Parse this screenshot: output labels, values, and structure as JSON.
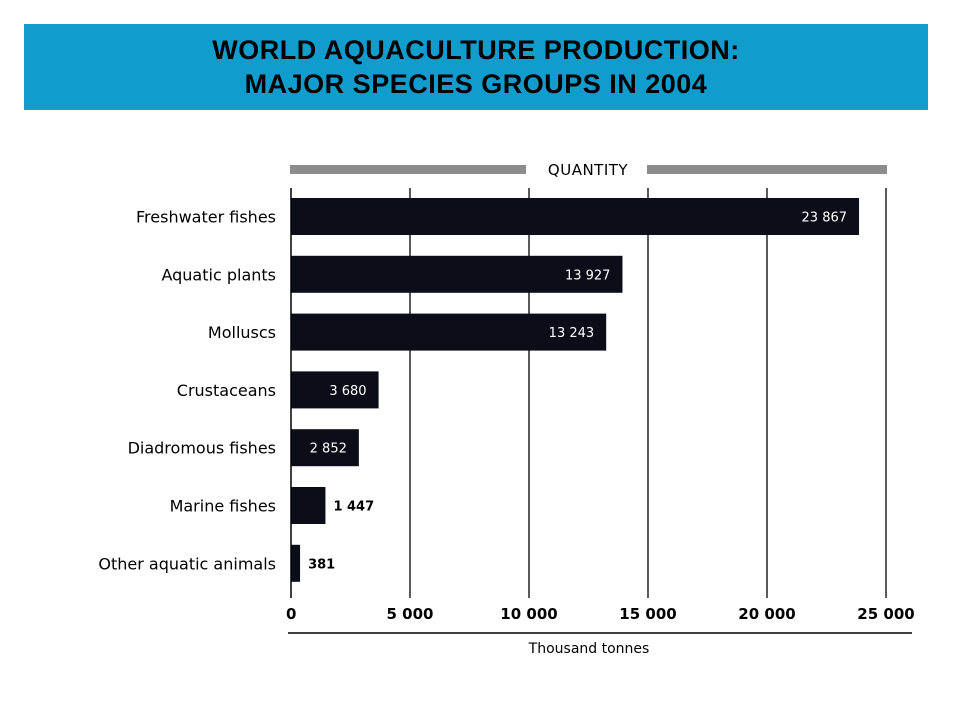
{
  "title": {
    "line1": "WORLD AQUACULTURE PRODUCTION:",
    "line2": "MAJOR SPECIES GROUPS IN 2004"
  },
  "colors": {
    "banner": "#109ccc",
    "bar": "#0d0d1a",
    "header_bar": "#8c8c8c"
  },
  "chart_data": {
    "type": "bar",
    "orientation": "horizontal",
    "header": "QUANTITY",
    "categories": [
      "Freshwater fishes",
      "Aquatic plants",
      "Molluscs",
      "Crustaceans",
      "Diadromous fishes",
      "Marine fishes",
      "Other aquatic animals"
    ],
    "values": [
      23867,
      13927,
      13243,
      3680,
      2852,
      1447,
      381
    ],
    "value_labels": [
      "23 867",
      "13 927",
      "13 243",
      "3 680",
      "2 852",
      "1 447",
      "381"
    ],
    "xlabel": "Thousand tonnes",
    "xlim": [
      0,
      25000
    ],
    "ticks": [
      0,
      5000,
      10000,
      15000,
      20000,
      25000
    ],
    "tick_labels": [
      "0",
      "5 000",
      "10 000",
      "15 000",
      "20 000",
      "25 000"
    ],
    "grid": true
  }
}
